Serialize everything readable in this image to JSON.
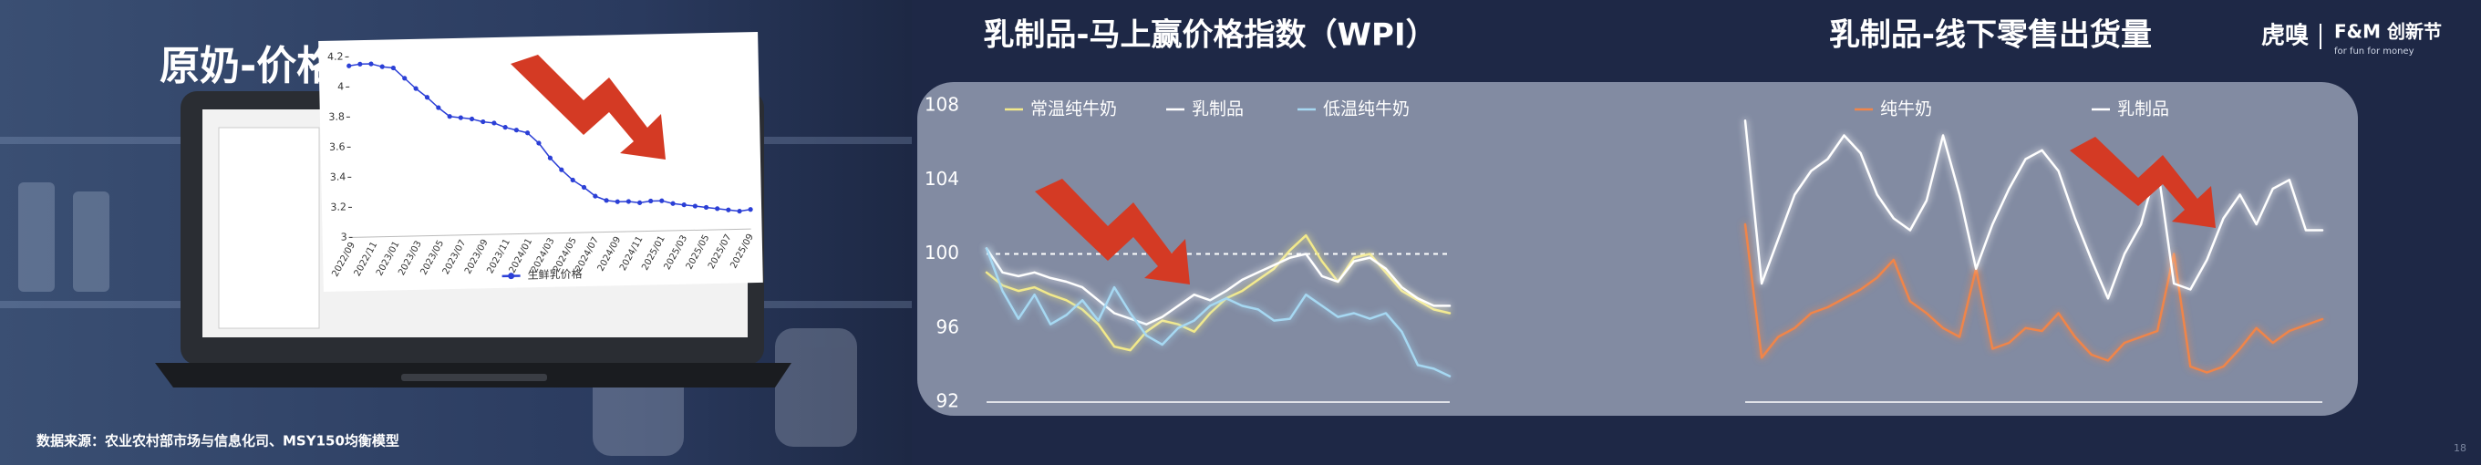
{
  "header": {
    "logo": "虎嗅",
    "brand": "F&M 创新节",
    "slogan": "for fun for money"
  },
  "footer": {
    "source": "数据来源：农业农村部市场与信息化司、MSY150均衡模型",
    "page": "18"
  },
  "chart_data": [
    {
      "type": "line",
      "title": "原奶-价格",
      "categories": [
        "2022/09",
        null,
        "2022/11",
        null,
        "2023/01",
        null,
        "2023/03",
        null,
        "2023/05",
        null,
        "2023/07",
        null,
        "2023/09",
        null,
        "2023/11",
        null,
        "2024/01",
        null,
        "2024/03",
        null,
        "2024/05",
        null,
        "2024/07",
        null,
        "2024/09",
        null,
        "2024/11",
        null,
        "2025/01",
        null,
        "2025/03",
        null,
        "2025/05",
        null,
        "2025/07",
        null,
        "2025/09"
      ],
      "series": [
        {
          "name": "生鲜乳价格",
          "color": "#2b3fd6",
          "values": [
            4.14,
            4.15,
            4.15,
            4.13,
            4.12,
            4.05,
            3.98,
            3.92,
            3.85,
            3.79,
            3.78,
            3.77,
            3.75,
            3.74,
            3.71,
            3.69,
            3.67,
            3.6,
            3.5,
            3.42,
            3.35,
            3.3,
            3.24,
            3.21,
            3.2,
            3.2,
            3.19,
            3.2,
            3.2,
            3.18,
            3.17,
            3.16,
            3.15,
            3.14,
            3.13,
            3.12,
            3.13
          ]
        }
      ],
      "ylim": [
        3,
        4.2
      ],
      "yticks": [
        3,
        3.2,
        3.4,
        3.6,
        3.8,
        4,
        4.2
      ],
      "markers": true
    },
    {
      "type": "line",
      "title": "乳制品-马上赢价格指数（WPI）",
      "series": [
        {
          "name": "常温纯牛奶",
          "color": "#f2e98a",
          "values": [
            99,
            98.3,
            98,
            98.2,
            97.8,
            97.5,
            97,
            96.2,
            95,
            94.8,
            95.8,
            96.4,
            96.2,
            95.8,
            96.8,
            97.6,
            98,
            98.6,
            99.2,
            100.2,
            101,
            99.6,
            98.5,
            99.8,
            100,
            99,
            98,
            97.5,
            97,
            96.8
          ]
        },
        {
          "name": "乳制品",
          "color": "#ffffff",
          "values": [
            100.3,
            99,
            98.8,
            99,
            98.7,
            98.5,
            98.2,
            97.5,
            96.8,
            96.5,
            96.2,
            96.6,
            97.2,
            97.8,
            97.5,
            98,
            98.6,
            99,
            99.4,
            99.8,
            100,
            98.8,
            98.5,
            99.6,
            99.8,
            99.2,
            98.2,
            97.6,
            97.2,
            97.2
          ]
        },
        {
          "name": "低温纯牛奶",
          "color": "#a6d8f2",
          "values": [
            100.3,
            98,
            96.5,
            97.8,
            96.2,
            96.7,
            97.5,
            96.4,
            98.2,
            96.8,
            95.6,
            95.1,
            96,
            96.4,
            97.2,
            97.6,
            97.2,
            97,
            96.4,
            96.5,
            97.8,
            97.2,
            96.6,
            96.8,
            96.5,
            96.8,
            95.8,
            94,
            93.8,
            93.4
          ]
        }
      ],
      "ylim": [
        92,
        108
      ],
      "yticks": [
        92,
        96,
        100,
        104,
        108
      ],
      "reference_line": 100
    },
    {
      "type": "line",
      "title": "乳制品-线下零售出货量",
      "series": [
        {
          "name": "纯牛奶",
          "color": "#f0854a",
          "values": [
            60,
            15,
            22,
            25,
            30,
            32,
            35,
            38,
            42,
            48,
            34,
            30,
            25,
            22,
            45,
            18,
            20,
            25,
            24,
            30,
            22,
            16,
            14,
            20,
            22,
            24,
            50,
            12,
            10,
            12,
            18,
            25,
            20,
            24,
            26,
            28
          ]
        },
        {
          "name": "乳制品",
          "color": "#ffffff",
          "values": [
            95,
            40,
            55,
            70,
            78,
            82,
            90,
            84,
            70,
            62,
            58,
            68,
            90,
            70,
            45,
            60,
            72,
            82,
            85,
            78,
            62,
            48,
            35,
            50,
            60,
            80,
            40,
            38,
            48,
            62,
            70,
            60,
            72,
            75,
            58,
            58
          ]
        }
      ],
      "ylim": [
        0,
        100
      ]
    }
  ]
}
